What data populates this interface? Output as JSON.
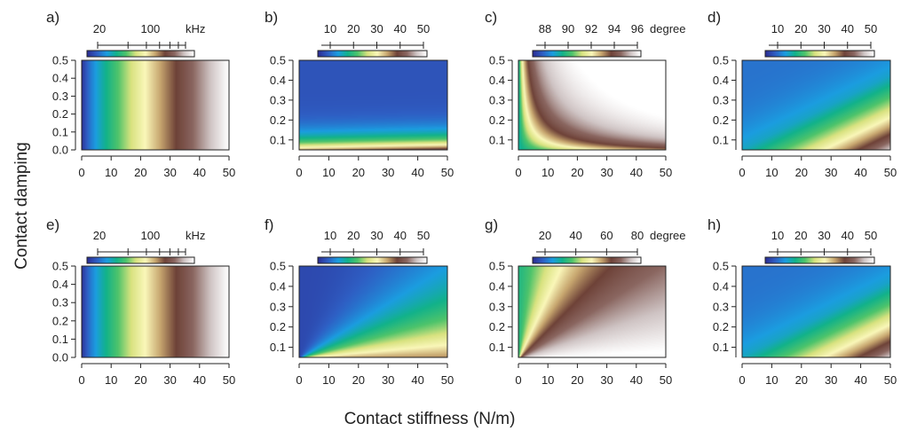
{
  "figure": {
    "xlabel": "Contact stiffness (N/m)",
    "ylabel": "Contact damping"
  },
  "colors": {
    "ramp": [
      "#2c2e94",
      "#2e5fc4",
      "#1b9de0",
      "#12b28a",
      "#4ec46b",
      "#d8e27f",
      "#faf7b9",
      "#c7a66f",
      "#6e4238",
      "#8a6660",
      "#cfc4c4",
      "#ffffff"
    ]
  },
  "chart_data": [
    {
      "id": "a",
      "type": "heatmap",
      "panel_label": "a)",
      "pattern": "vertical",
      "x_range": [
        0,
        50
      ],
      "y_range": [
        0,
        0.5
      ],
      "x_ticks": [
        "0",
        "10",
        "20",
        "30",
        "40",
        "50"
      ],
      "y_ticks": [
        "0.0",
        "0.1",
        "0.2",
        "0.3",
        "0.4",
        "0.5"
      ],
      "colorbar": {
        "labels": [
          "20",
          "100"
        ],
        "unit": "kHz",
        "scale": "log",
        "minor_ticks": 7
      }
    },
    {
      "id": "b",
      "type": "heatmap",
      "panel_label": "b)",
      "pattern": "horizontal_fan",
      "x_range": [
        0,
        50
      ],
      "y_range": [
        0.05,
        0.5
      ],
      "x_ticks": [
        "0",
        "10",
        "20",
        "30",
        "40",
        "50"
      ],
      "y_ticks": [
        "0.1",
        "0.2",
        "0.3",
        "0.4",
        "0.5"
      ],
      "colorbar": {
        "labels": [
          "10",
          "20",
          "30",
          "40",
          "50"
        ],
        "unit": ""
      }
    },
    {
      "id": "c",
      "type": "heatmap",
      "panel_label": "c)",
      "pattern": "curved_ridge",
      "x_range": [
        0,
        50
      ],
      "y_range": [
        0.05,
        0.5
      ],
      "x_ticks": [
        "0",
        "10",
        "20",
        "30",
        "40",
        "50"
      ],
      "y_ticks": [
        "0.1",
        "0.2",
        "0.3",
        "0.4",
        "0.5"
      ],
      "colorbar": {
        "labels": [
          "88",
          "90",
          "92",
          "94",
          "96"
        ],
        "unit": "degree"
      }
    },
    {
      "id": "d",
      "type": "heatmap",
      "panel_label": "d)",
      "pattern": "diagonal",
      "x_range": [
        0,
        50
      ],
      "y_range": [
        0.05,
        0.5
      ],
      "x_ticks": [
        "0",
        "10",
        "20",
        "30",
        "40",
        "50"
      ],
      "y_ticks": [
        "0.1",
        "0.2",
        "0.3",
        "0.4",
        "0.5"
      ],
      "colorbar": {
        "labels": [
          "10",
          "20",
          "30",
          "40",
          "50"
        ],
        "unit": ""
      }
    },
    {
      "id": "e",
      "type": "heatmap",
      "panel_label": "e)",
      "pattern": "vertical",
      "x_range": [
        0,
        50
      ],
      "y_range": [
        0,
        0.5
      ],
      "x_ticks": [
        "0",
        "10",
        "20",
        "30",
        "40",
        "50"
      ],
      "y_ticks": [
        "0.0",
        "0.1",
        "0.2",
        "0.3",
        "0.4",
        "0.5"
      ],
      "colorbar": {
        "labels": [
          "20",
          "100"
        ],
        "unit": "kHz",
        "scale": "log",
        "minor_ticks": 7
      }
    },
    {
      "id": "f",
      "type": "heatmap",
      "panel_label": "f)",
      "pattern": "radial_fan",
      "x_range": [
        0,
        50
      ],
      "y_range": [
        0.05,
        0.5
      ],
      "x_ticks": [
        "0",
        "10",
        "20",
        "30",
        "40",
        "50"
      ],
      "y_ticks": [
        "0.1",
        "0.2",
        "0.3",
        "0.4",
        "0.5"
      ],
      "colorbar": {
        "labels": [
          "10",
          "20",
          "30",
          "40",
          "50"
        ],
        "unit": ""
      }
    },
    {
      "id": "g",
      "type": "heatmap",
      "panel_label": "g)",
      "pattern": "ratio",
      "x_range": [
        0,
        50
      ],
      "y_range": [
        0.05,
        0.5
      ],
      "x_ticks": [
        "0",
        "10",
        "20",
        "30",
        "40",
        "50"
      ],
      "y_ticks": [
        "0.1",
        "0.2",
        "0.3",
        "0.4",
        "0.5"
      ],
      "colorbar": {
        "labels": [
          "20",
          "40",
          "60",
          "80"
        ],
        "unit": "degree"
      }
    },
    {
      "id": "h",
      "type": "heatmap",
      "panel_label": "h)",
      "pattern": "diagonal",
      "x_range": [
        0,
        50
      ],
      "y_range": [
        0.05,
        0.5
      ],
      "x_ticks": [
        "0",
        "10",
        "20",
        "30",
        "40",
        "50"
      ],
      "y_ticks": [
        "0.1",
        "0.2",
        "0.3",
        "0.4",
        "0.5"
      ],
      "colorbar": {
        "labels": [
          "10",
          "20",
          "30",
          "40",
          "50"
        ],
        "unit": ""
      }
    }
  ]
}
